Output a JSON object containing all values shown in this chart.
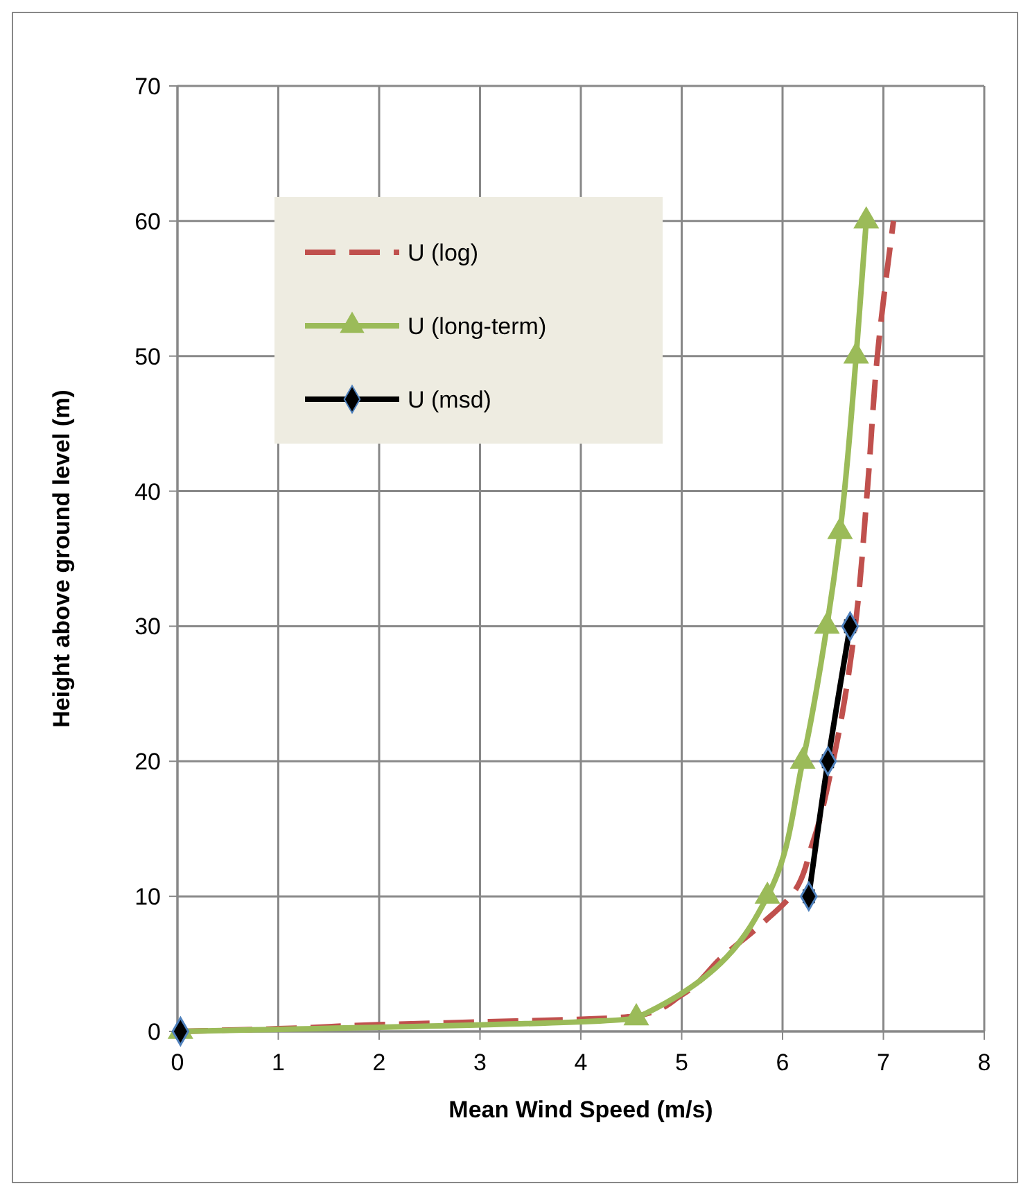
{
  "chart_data": {
    "type": "line",
    "xlabel": "Mean Wind Speed (m/s)",
    "ylabel": "Height above ground level (m)",
    "xlim": [
      0,
      8
    ],
    "xticks": [
      0,
      1,
      2,
      3,
      4,
      5,
      6,
      7,
      8
    ],
    "ylim": [
      0,
      70
    ],
    "yticks": [
      0,
      10,
      20,
      30,
      40,
      50,
      60,
      70
    ],
    "grid": true,
    "legend": "top left",
    "series": [
      {
        "name": "U (log)",
        "color": "#c0504d",
        "line_style": "dashed",
        "marker": "none",
        "x": [
          0,
          1,
          2,
          3,
          4,
          4.6,
          5,
          5.4,
          5.8,
          6.08,
          6.3,
          6.5,
          6.72,
          6.84,
          6.94,
          7.1
        ],
        "values": [
          0,
          0.2,
          0.5,
          0.7,
          0.9,
          1.2,
          2.7,
          5.5,
          8,
          10,
          14,
          20,
          30,
          40,
          50,
          60
        ]
      },
      {
        "name": "U (long-term)",
        "color": "#9bbb59",
        "line_style": "solid",
        "marker": "triangle",
        "x": [
          0.03,
          4.55,
          5.85,
          6.2,
          6.44,
          6.57,
          6.73,
          6.83
        ],
        "values": [
          0,
          1,
          10,
          20,
          30,
          37,
          50,
          60
        ]
      },
      {
        "name": "U (msd)",
        "color": "#000000",
        "line_style": "solid",
        "marker": "diamond",
        "x": [
          6.26,
          6.45,
          6.67
        ],
        "values": [
          10,
          20,
          30
        ],
        "xerrors": [
          0.05,
          0.05,
          0.05
        ]
      },
      {
        "type": "scatter",
        "color": "#000000",
        "marker": "diamond",
        "x": [
          0.03
        ],
        "values": [
          0
        ]
      }
    ]
  }
}
